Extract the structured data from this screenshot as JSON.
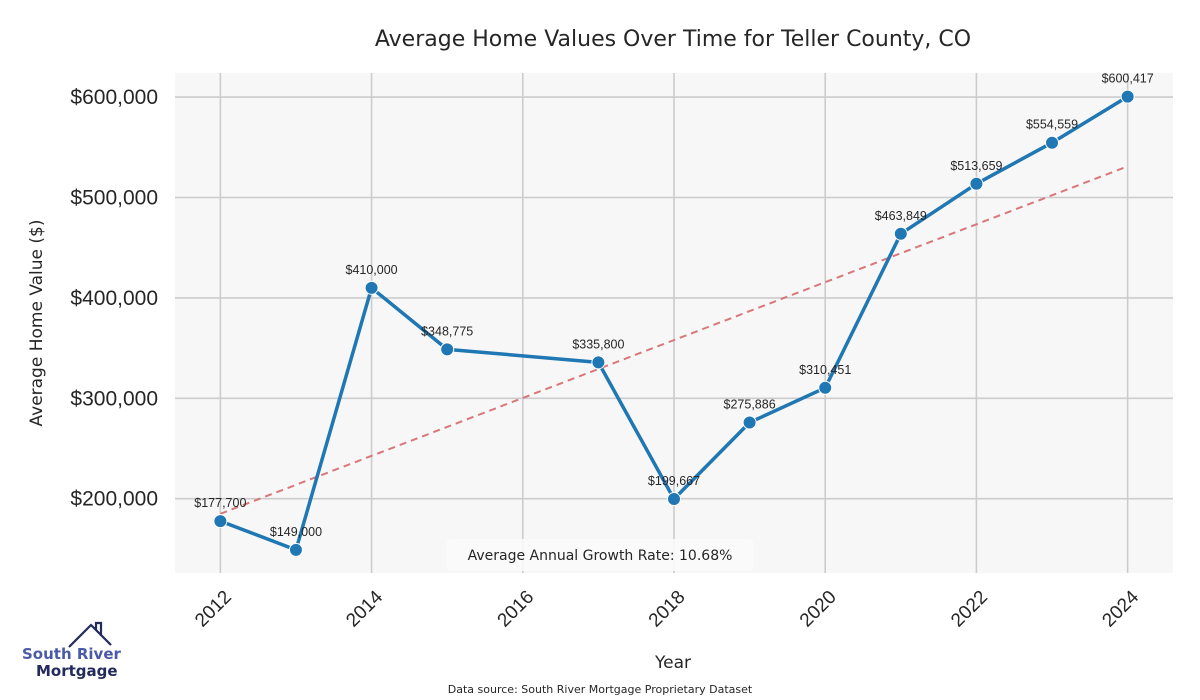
{
  "chart_data": {
    "type": "line",
    "title": "Average Home Values Over Time for Teller County, CO",
    "xlabel": "Year",
    "ylabel": "Average Home Value ($)",
    "xlim": [
      2011.4,
      2024.6
    ],
    "ylim": [
      126000,
      624000
    ],
    "grid": true,
    "x_ticks": [
      2012,
      2014,
      2016,
      2018,
      2020,
      2022,
      2024
    ],
    "x_tick_labels": [
      "2012",
      "2014",
      "2016",
      "2018",
      "2020",
      "2022",
      "2024"
    ],
    "y_ticks": [
      200000,
      300000,
      400000,
      500000,
      600000
    ],
    "y_tick_labels": [
      "$200,000",
      "$300,000",
      "$400,000",
      "$500,000",
      "$600,000"
    ],
    "series": [
      {
        "name": "Average Home Value",
        "color": "#1f77b4",
        "x": [
          2012,
          2013,
          2014,
          2015,
          2017,
          2018,
          2019,
          2020,
          2021,
          2022,
          2023,
          2024
        ],
        "values": [
          177700,
          149000,
          410000,
          348775,
          335800,
          199667,
          275886,
          310451,
          463849,
          513659,
          554559,
          600417
        ],
        "labels": [
          "$177,700",
          "$149,000",
          "$410,000",
          "$348,775",
          "$335,800",
          "$199,667",
          "$275,886",
          "$310,451",
          "$463,849",
          "$513,659",
          "$554,559",
          "$600,417"
        ]
      }
    ],
    "trendline": {
      "name": "Trend",
      "color": "#d9777a",
      "style": "dashed",
      "x": [
        2012,
        2024
      ],
      "values": [
        185000,
        531000
      ]
    },
    "annotation": "Average Annual Growth Rate: 10.68%",
    "source": "Data source: South River Mortgage Proprietary Dataset",
    "colors": {
      "plot_background": "#f7f7f7",
      "grid": "#cccccc",
      "line": "#1f77b4",
      "trend": "#d9777a"
    }
  },
  "logo": {
    "line1": "South River",
    "line2": "Mortgage"
  }
}
